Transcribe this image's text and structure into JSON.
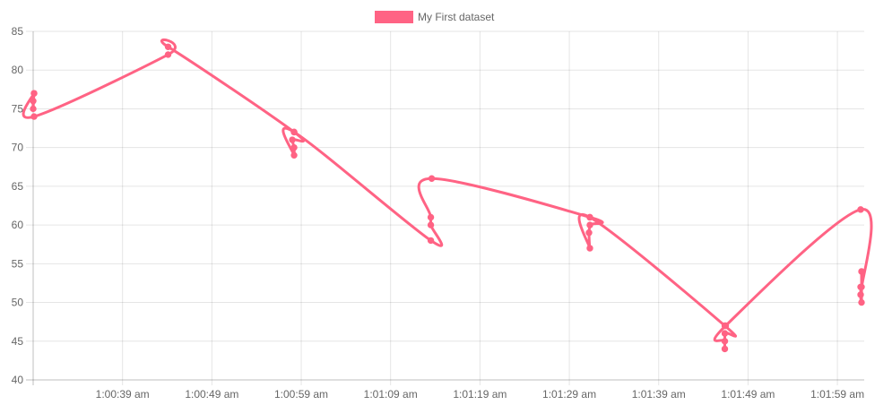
{
  "chart_data": {
    "type": "line",
    "legend": {
      "position": "top"
    },
    "grid": true,
    "x_axis": {
      "type": "time",
      "ticks": [
        "1:00:39 am",
        "1:00:49 am",
        "1:00:59 am",
        "1:01:09 am",
        "1:01:19 am",
        "1:01:29 am",
        "1:01:39 am",
        "1:01:49 am",
        "1:01:59 am"
      ],
      "range": [
        "1:00:29 am",
        "1:02:02 am"
      ]
    },
    "y_axis": {
      "ticks": [
        40,
        45,
        50,
        55,
        60,
        65,
        70,
        75,
        80,
        85
      ],
      "range": [
        40,
        85
      ]
    },
    "series": [
      {
        "name": "My First dataset",
        "color": "#ff6384",
        "points": [
          {
            "x": "1:00:29.10 am",
            "y": 77
          },
          {
            "x": "1:00:29.00 am",
            "y": 76
          },
          {
            "x": "1:00:29.00 am",
            "y": 75
          },
          {
            "x": "1:00:29.10 am",
            "y": 77
          },
          {
            "x": "1:00:29.10 am",
            "y": 74
          },
          {
            "x": "1:00:44.10 am",
            "y": 82
          },
          {
            "x": "1:00:44.10 am",
            "y": 83
          },
          {
            "x": "1:00:58.20 am",
            "y": 72
          },
          {
            "x": "1:00:58.00 am",
            "y": 71
          },
          {
            "x": "1:00:58.20 am",
            "y": 70
          },
          {
            "x": "1:00:58.20 am",
            "y": 69
          },
          {
            "x": "1:00:58.20 am",
            "y": 72
          },
          {
            "x": "1:01:13.50 am",
            "y": 58
          },
          {
            "x": "1:01:13.50 am",
            "y": 60
          },
          {
            "x": "1:01:13.50 am",
            "y": 61
          },
          {
            "x": "1:01:13.60 am",
            "y": 66
          },
          {
            "x": "1:01:31.30 am",
            "y": 61
          },
          {
            "x": "1:01:31.30 am",
            "y": 60
          },
          {
            "x": "1:01:31.20 am",
            "y": 59
          },
          {
            "x": "1:01:31.30 am",
            "y": 57
          },
          {
            "x": "1:01:31.30 am",
            "y": 61
          },
          {
            "x": "1:01:46.40 am",
            "y": 47
          },
          {
            "x": "1:01:46.40 am",
            "y": 46
          },
          {
            "x": "1:01:46.40 am",
            "y": 44
          },
          {
            "x": "1:01:46.40 am",
            "y": 45
          },
          {
            "x": "1:01:46.50 am",
            "y": 47
          },
          {
            "x": "1:02:01.60 am",
            "y": 62
          },
          {
            "x": "1:02:01.60 am",
            "y": 51
          },
          {
            "x": "1:02:01.70 am",
            "y": 52
          },
          {
            "x": "1:02:01.60 am",
            "y": 52
          },
          {
            "x": "1:02:01.70 am",
            "y": 50
          },
          {
            "x": "1:02:01.70 am",
            "y": 54
          }
        ]
      }
    ]
  }
}
